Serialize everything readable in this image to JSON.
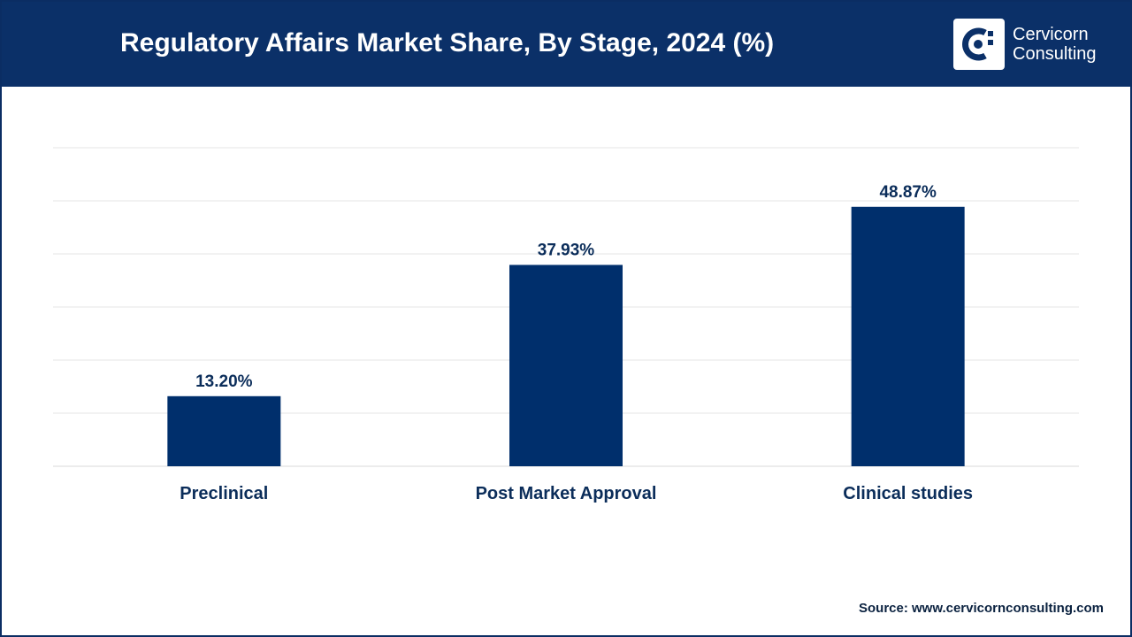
{
  "header": {
    "title": "Regulatory Affairs Market Share, By Stage, 2024 (%)",
    "logo_line1": "Cervicorn",
    "logo_line2": "Consulting"
  },
  "source": "Source: www.cervicornconsulting.com",
  "colors": {
    "header_bg": "#0b3068",
    "bar": "#002f6c",
    "label": "#0b2d5a",
    "grid": "#e6e6e6"
  },
  "chart_data": {
    "type": "bar",
    "title": "Regulatory Affairs Market Share, By Stage, 2024 (%)",
    "categories": [
      "Preclinical",
      "Post Market Approval",
      "Clinical studies"
    ],
    "values": [
      13.2,
      37.93,
      48.87
    ],
    "data_labels": [
      "13.20%",
      "37.93%",
      "48.87%"
    ],
    "xlabel": "",
    "ylabel": "",
    "ylim": [
      0,
      60
    ],
    "grid": true,
    "legend": "none"
  }
}
